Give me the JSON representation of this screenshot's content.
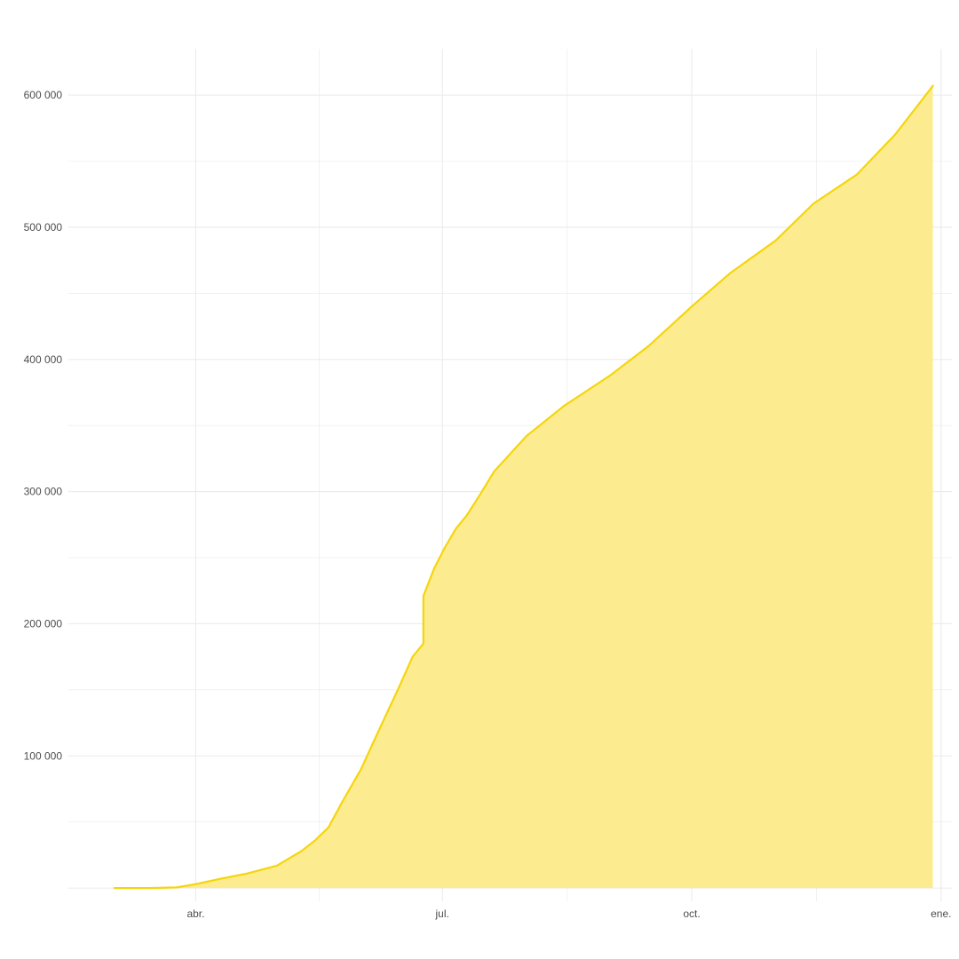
{
  "chart_data": {
    "type": "area",
    "title": "",
    "xlabel": "",
    "ylabel": "",
    "x_tick_labels": [
      {
        "date": "2020-04-01",
        "label": "abr."
      },
      {
        "date": "2020-07-01",
        "label": "jul."
      },
      {
        "date": "2020-10-01",
        "label": "oct."
      },
      {
        "date": "2021-01-01",
        "label": "ene."
      }
    ],
    "y_tick_labels": [
      {
        "value": 100000,
        "label": "100 000"
      },
      {
        "value": 200000,
        "label": "200 000"
      },
      {
        "value": 300000,
        "label": "300 000"
      },
      {
        "value": 400000,
        "label": "400 000"
      },
      {
        "value": 500000,
        "label": "500 000"
      },
      {
        "value": 600000,
        "label": "600 000"
      }
    ],
    "xlim": [
      "2020-02-14",
      "2021-01-05"
    ],
    "ylim": [
      -10000,
      635000
    ],
    "grid": true,
    "colors": {
      "line": "#f5d50c",
      "fill": "#fdec8f",
      "grid": "#ebebeb",
      "text": "#4d4d4d"
    },
    "series": [
      {
        "x": [
          "2020-03-02",
          "2020-03-15",
          "2020-03-25",
          "2020-04-01",
          "2020-04-10",
          "2020-04-20",
          "2020-05-01",
          "2020-05-10",
          "2020-05-15",
          "2020-05-20",
          "2020-05-25",
          "2020-06-01",
          "2020-06-05",
          "2020-06-10",
          "2020-06-15",
          "2020-06-20",
          "2020-06-24",
          "2020-06-24",
          "2020-06-28",
          "2020-07-02",
          "2020-07-06",
          "2020-07-10",
          "2020-07-15",
          "2020-07-20",
          "2020-08-01",
          "2020-08-15",
          "2020-09-01",
          "2020-09-15",
          "2020-10-01",
          "2020-10-15",
          "2020-11-01",
          "2020-11-15",
          "2020-12-01",
          "2020-12-15",
          "2020-12-29"
        ],
        "y": [
          0,
          0,
          500,
          3000,
          7000,
          11000,
          17000,
          28000,
          36000,
          46000,
          65000,
          90000,
          108000,
          130000,
          152000,
          175000,
          185000,
          221000,
          242000,
          258000,
          272000,
          282000,
          298000,
          315000,
          342000,
          365000,
          388000,
          410000,
          440000,
          465000,
          490000,
          518000,
          540000,
          570000,
          607000
        ]
      }
    ]
  }
}
